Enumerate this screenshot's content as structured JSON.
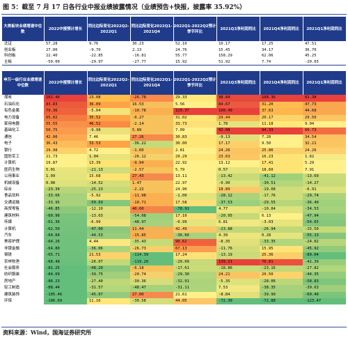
{
  "title": "图 5：截至 7 月 17 日各行业中报业绩披露情况（业绩预告+快报，披露率 35.92%）",
  "source": "资料来源：Wind，国海证券研究所",
  "colors": {
    "header_bg": "#1f3b8a",
    "rule": "#2f4f9a"
  },
  "table1": {
    "headers": [
      "大类板块业绩增速中位数",
      "2022中报预计增长",
      "同比边际变化2022Q2-2022Q1",
      "同比边际变化2022Q1-2021Q4",
      "2022Q1-2022Q2预计季节环比",
      "2021Q3净利润同比",
      "2021Q4净利润同比",
      "2021Q1净利润同比"
    ],
    "rows": [
      [
        "北证",
        "57.28",
        "9.76",
        "30.23",
        "52.10",
        "10.17",
        "17.25",
        "47.51"
      ],
      [
        "创业板",
        "27.00",
        "-9.70",
        "2.13",
        "24.76",
        "15.45",
        "34.17",
        "36.70"
      ],
      [
        "科创板",
        "22.40",
        "-22.85",
        "-16.81",
        "55.77",
        "158.29",
        "62.06",
        "45.25"
      ],
      [
        "主板",
        "-50.00",
        "-29.97",
        "-27.77",
        "15.92",
        "51.92",
        "7.74",
        "-20.03"
      ]
    ]
  },
  "table2": {
    "headers": [
      "申万一级行业业绩增速中位数",
      "2022中报预计增长",
      "同比边际变化2022Q2-2022Q1",
      "同比边际变化2022Q1-2021Q4",
      "2022Q1-2022Q2预计季节环比",
      "2021Q3净利润同比",
      "2021Q4净利润同比",
      "2021Q1净利润同比"
    ],
    "rows": [
      {
        "name": "煤炭",
        "v": [
          "102.46",
          "23.08",
          "-26.78",
          "29.33",
          "98.84",
          "108.36",
          "81.38"
        ],
        "c": [
          "#e8413c",
          "#ffbe4a",
          "#fa8a4a",
          "#ffe97a",
          "#e54a3d",
          "#e8413c",
          "#e8413c"
        ]
      },
      {
        "name": "石油石化",
        "v": [
          "83.83",
          "36.09",
          "16.53",
          "5.56",
          "84.67",
          "31.20",
          "47.73"
        ],
        "c": [
          "#ec5a3c",
          "#ffa345",
          "#f7bf5b",
          "#fff08a",
          "#eb5a3f",
          "#ffbc50",
          "#f9a84f"
        ]
      },
      {
        "name": "有色金属",
        "v": [
          "79.36",
          "-5.04",
          "-10.78",
          "129.37",
          "100.49",
          "37.63",
          "44.68"
        ],
        "c": [
          "#ef623c",
          "#f5e37a",
          "#fbb050",
          "#e8413c",
          "#e8413c",
          "#ffb64d",
          "#f9a84f"
        ]
      },
      {
        "name": "电力设备",
        "v": [
          "65.02",
          "35.52",
          "-0.27",
          "31.02",
          "29.44",
          "20.17",
          "29.50"
        ],
        "c": [
          "#f57c41",
          "#ffa345",
          "#f7c15b",
          "#ffe676",
          "#f9b652",
          "#fbd46a",
          "#fcc563"
        ]
      },
      {
        "name": "家用电器",
        "v": [
          "55.55",
          "46.52",
          "-2.14",
          "33.73",
          "1.78",
          "11.18",
          "9.04"
        ],
        "c": [
          "#f9904a",
          "#fb8a43",
          "#f7c25c",
          "#fee079",
          "#e3e47b",
          "#fee879",
          "#fff08a"
        ]
      },
      {
        "name": "基础化工",
        "v": [
          "50.75",
          "-9.98",
          "5.89",
          "7.09",
          "92.08",
          "94.33",
          "60.73"
        ],
        "c": [
          "#fb9b4d",
          "#ebe07a",
          "#f7c25c",
          "#fff08a",
          "#e8413c",
          "#e8413c",
          "#f36d43"
        ]
      },
      {
        "name": "通信",
        "v": [
          "42.00",
          "7.46",
          "27.26",
          "30.83",
          "-9.13",
          "7.28",
          "34.54"
        ],
        "c": [
          "#ffa852",
          "#fff08a",
          "#f68a4c",
          "#ffe676",
          "#e1e07b",
          "#fff08a",
          "#fbc260"
        ]
      },
      {
        "name": "电子",
        "v": [
          "36.43",
          "33.53",
          "-36.22",
          "30.00",
          "17.17",
          "9.50",
          "32.21"
        ],
        "c": [
          "#ffbc58",
          "#ffa345",
          "#c5db78",
          "#ffe676",
          "#fcd06a",
          "#fff08a",
          "#fbc662"
        ]
      },
      {
        "name": "银行",
        "v": [
          "29.98",
          "4.72",
          "-1.60",
          "2.81",
          "24.26",
          "25.86",
          "24.26"
        ],
        "c": [
          "#fed168",
          "#fff08a",
          "#f7c25c",
          "#fff08a",
          "#fbc462",
          "#fbd068",
          "#fdd06b"
        ]
      },
      {
        "name": "国防军工",
        "v": [
          "21.73",
          "1.04",
          "-26.12",
          "29.29",
          "23.63",
          "16.23",
          "1.62"
        ],
        "c": [
          "#fff08a",
          "#e7e47b",
          "#f5d06b",
          "#ffe97a",
          "#fcc763",
          "#fee474",
          "#f5eb85"
        ]
      },
      {
        "name": "计算机",
        "v": [
          "19.87",
          "13.39",
          "-9.94",
          "22.92",
          "13.12",
          "17.41",
          "5.29"
        ],
        "c": [
          "#fff08a",
          "#ffe473",
          "#fbb050",
          "#fff08a",
          "#fff08a",
          "#fee474",
          "#fff08a"
        ]
      },
      {
        "name": "医药生物",
        "v": [
          "5.01",
          "-21.13",
          "-2.57",
          "5.79",
          "0.57",
          "18.60",
          "7.91"
        ],
        "c": [
          "#e8e57c",
          "#cfdd7a",
          "#f7c25c",
          "#fff08a",
          "#e3e47b",
          "#fee474",
          "#fff08a"
        ]
      },
      {
        "name": "公用事业",
        "v": [
          "1.99",
          "15.68",
          "27.43",
          "13.11",
          "-13.42",
          "-41.12",
          "-13.69"
        ],
        "c": [
          "#e3e47b",
          "#ffe473",
          "#f68a4c",
          "#fff08a",
          "#c8db77",
          "#9fd17b",
          "#cadb79"
        ]
      },
      {
        "name": "机械设备",
        "v": [
          "0.08",
          "-14.52",
          "1.47",
          "22.97",
          "-0.90",
          "-30.51",
          "-14.27"
        ],
        "c": [
          "#dde27b",
          "#d5de7a",
          "#f7c25c",
          "#fff08a",
          "#dde27b",
          "#b6d67a",
          "#c8db78"
        ]
      },
      {
        "name": "综合",
        "v": [
          "-23.34",
          "-25.23",
          "-2.22",
          "24.90",
          "18.89",
          "-19.08",
          "-6.91"
        ],
        "c": [
          "#b8d679",
          "#c6da77",
          "#f7c25c",
          "#fff08a",
          "#fdc867",
          "#d0dd79",
          "#dde27b"
        ]
      },
      {
        "name": "食品饮料",
        "v": [
          "-33.66",
          "-5.92",
          "-11.98",
          "-1.00",
          "-28.12",
          "-17.76",
          "-29.74"
        ],
        "c": [
          "#a7d27b",
          "#f5e37a",
          "#fbb050",
          "#e3e47b",
          "#acd37c",
          "#d0dd79",
          "#acd37c"
        ]
      },
      {
        "name": "交通运输",
        "v": [
          "-33.95",
          "-50.69",
          "-10.71",
          "17.58",
          "-37.53",
          "-29.55",
          "-36.40"
        ],
        "c": [
          "#a7d27b",
          "#85c87b",
          "#fbb050",
          "#fee079",
          "#9cd07c",
          "#b6d67a",
          "#9fd17c"
        ]
      },
      {
        "name": "商贸零售",
        "v": [
          "-46.85",
          "-12.10",
          "40.60",
          "-78.91",
          "4.77",
          "-10.84",
          "-34.53"
        ],
        "c": [
          "#8ec97b",
          "#e0df7a",
          "#f5844a",
          "#63be7b",
          "#ebe57b",
          "#dde27b",
          "#a5d27b"
        ]
      },
      {
        "name": "建筑材料",
        "v": [
          "-60.96",
          "-13.03",
          "-54.08",
          "17.10",
          "-20.95",
          "6.13",
          "-47.94"
        ],
        "c": [
          "#78c47b",
          "#dade79",
          "#9fd17c",
          "#fee079",
          "#c6da77",
          "#fff08a",
          "#8ec97b"
        ]
      },
      {
        "name": "传媒",
        "v": [
          "-61.36",
          "-6.99",
          "-48.97",
          "-0.99",
          "6.81",
          "-3.03",
          "-54.65"
        ],
        "c": [
          "#76c37b",
          "#f0e07a",
          "#a7d27b",
          "#e3e47b",
          "#f1e882",
          "#e7e47b",
          "#86c77b"
        ]
      },
      {
        "name": "计算机",
        "v": [
          "-62.50",
          "-47.00",
          "11.44",
          "42.49",
          "-23.88",
          "-26.94",
          "-15.50"
        ],
        "c": [
          "#74c27b",
          "#8ec87b",
          "#f3b055",
          "#fdc667",
          "#c1d878",
          "#c0d878",
          "#c5da78"
        ]
      },
      {
        "name": "汽车",
        "v": [
          "-64.04",
          "-44.53",
          "-15.85",
          "-36.66",
          "4.39",
          "0.28",
          "-55.13"
        ],
        "c": [
          "#71c17b",
          "#96cc7c",
          "#fbb050",
          "#a8d27b",
          "#ebe57b",
          "#e3e47b",
          "#85c67b"
        ]
      },
      {
        "name": "美容护理",
        "v": [
          "-64.26",
          "4.44",
          "-35.43",
          "90.62",
          "-8.35",
          "-33.35",
          "-24.02"
        ],
        "c": [
          "#71c17b",
          "#fbe780",
          "#c5db78",
          "#f0623d",
          "#e1e07b",
          "#b2d67b",
          "#b8d679"
        ]
      },
      {
        "name": "非银金融",
        "v": [
          "-64.80",
          "-36.06",
          "-26.73",
          "67.13",
          "-11.76",
          "15.95",
          "-45.92"
        ],
        "c": [
          "#70c17b",
          "#aed47b",
          "#f5d06b",
          "#fb9d4e",
          "#d2dd7a",
          "#fee474",
          "#93cb7c"
        ]
      },
      {
        "name": "钢铁",
        "v": [
          "-65.71",
          "21.53",
          "-114.39",
          "17.24",
          "-13.19",
          "25.36",
          "-89.04"
        ],
        "c": [
          "#6ec07b",
          "#fed26a",
          "#63be7b",
          "#fee079",
          "#cadb79",
          "#fbd068",
          "#63be7b"
        ]
      },
      {
        "name": "农林牧渔",
        "v": [
          "-68.48",
          "-26.07",
          "-119.20",
          "-20.09",
          "139.21",
          "76.81",
          "-42.39"
        ],
        "c": [
          "#6ac07b",
          "#c3d977",
          "#63be7b",
          "#c6da77",
          "#e8413c",
          "#eb4f3e",
          "#98cd7b"
        ]
      },
      {
        "name": "社会服务",
        "v": [
          "-81.25",
          "-48.20",
          "-6.18",
          "-17.61",
          "-18.86",
          "-23.16",
          "-27.82"
        ],
        "c": [
          "#63be7b",
          "#8bc87b",
          "#f7c25c",
          "#cadb79",
          "#c8db77",
          "#c2d878",
          "#b2d67b"
        ]
      },
      {
        "name": "纺织服装",
        "v": [
          "-84.09",
          "-39.75",
          "-20.74",
          "-29.30",
          "24.21",
          "20.50",
          "-44.35"
        ],
        "c": [
          "#63be7b",
          "#a1cf7b",
          "#f5d06b",
          "#b3d57b",
          "#fbc462",
          "#fbd46a",
          "#95cc7c"
        ]
      },
      {
        "name": "房地产",
        "v": [
          "-86.23",
          "-27.40",
          "-30.36",
          "-32.91",
          "-5.35",
          "-28.06",
          "-58.83"
        ],
        "c": [
          "#63be7b",
          "#bed877",
          "#d5de7a",
          "#acd37c",
          "#dde27b",
          "#bcd779",
          "#7fc57b"
        ]
      },
      {
        "name": "轻工制造",
        "v": [
          "-88.44",
          "-31.57",
          "-48.47",
          "-31.11",
          "7.53",
          "-38.35",
          "-39.63"
        ],
        "c": [
          "#63be7b",
          "#b5d67b",
          "#a7d27b",
          "#aed47b",
          "#f1e882",
          "#a7d27b",
          "#a0cf7b"
        ]
      },
      {
        "name": "建筑装饰",
        "v": [
          "-105.46",
          "-45.07",
          "27.00",
          "21.61",
          "-8.84",
          "-39.90",
          "-60.40"
        ],
        "c": [
          "#63be7b",
          "#95cb7c",
          "#f68a4c",
          "#fff08a",
          "#e1e07b",
          "#a4d07b",
          "#7cc47b"
        ]
      },
      {
        "name": "环保",
        "v": [
          "-106.69",
          "11.16",
          "-30.58",
          "44.05",
          "-72.30",
          "-72.88",
          "-123.47"
        ],
        "c": [
          "#63be7b",
          "#ffe679",
          "#d5de7a",
          "#fdc667",
          "#63be7b",
          "#63be7b",
          "#63be7b"
        ]
      }
    ]
  }
}
